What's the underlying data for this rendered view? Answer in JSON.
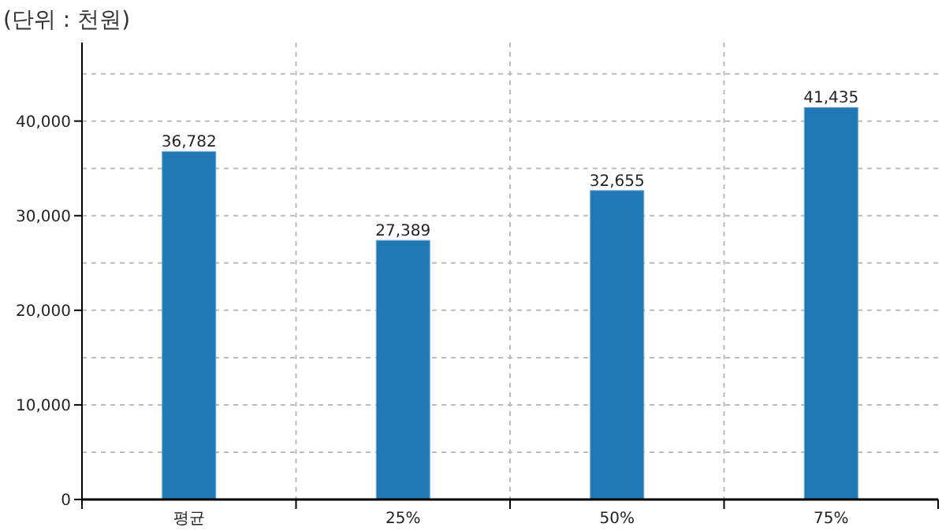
{
  "chart_data": {
    "type": "bar",
    "title": "(단위 : 천원)",
    "categories": [
      "평균",
      "25%",
      "50%",
      "75%"
    ],
    "values": [
      36782,
      27389,
      32655,
      41435
    ],
    "color": "#1f77b4",
    "ylim": [
      0,
      48300
    ],
    "yticks": [
      0,
      {
        "value": 5000,
        "label": null
      },
      {
        "value": 10000,
        "label": "10,000"
      },
      {
        "value": 15000,
        "label": null
      },
      {
        "value": 20000,
        "label": "20,000"
      },
      {
        "value": 25000,
        "label": null
      },
      {
        "value": 30000,
        "label": "30,000"
      },
      {
        "value": 35000,
        "label": null
      },
      {
        "value": 40000,
        "label": "40,000"
      },
      {
        "value": 45000,
        "label": null
      }
    ],
    "value_labels": [
      "36,782",
      "27,389",
      "32,655",
      "41,435"
    ],
    "grid": true
  }
}
